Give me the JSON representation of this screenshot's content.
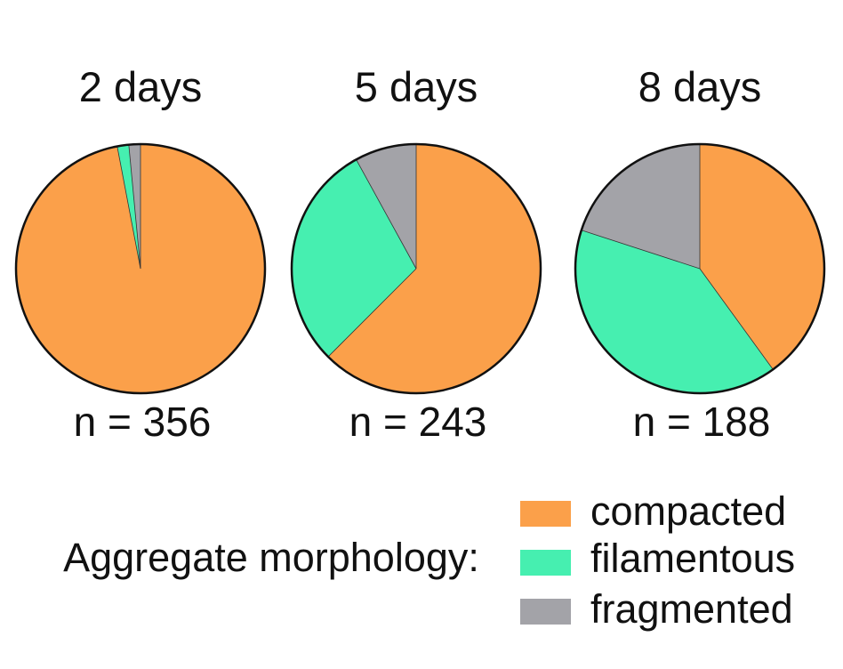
{
  "chart_data": {
    "type": "pie",
    "title": "",
    "legend": {
      "title": "Aggregate morphology:",
      "placement": "bottom-right",
      "entries": [
        {
          "name": "compacted",
          "color": "#FBA04A"
        },
        {
          "name": "filamentous",
          "color": "#46EFB0"
        },
        {
          "name": "fragmented",
          "color": "#A3A3A8"
        }
      ]
    },
    "categories": [
      "compacted",
      "filamentous",
      "fragmented"
    ],
    "charts": [
      {
        "title": "2 days",
        "n_label": "n = 356",
        "values": [
          97.0,
          1.5,
          1.5
        ]
      },
      {
        "title": "5 days",
        "n_label": "n = 243",
        "values": [
          62.5,
          29.5,
          8.0
        ]
      },
      {
        "title": "8 days",
        "n_label": "n = 188",
        "values": [
          40.0,
          40.0,
          20.0
        ]
      }
    ]
  }
}
